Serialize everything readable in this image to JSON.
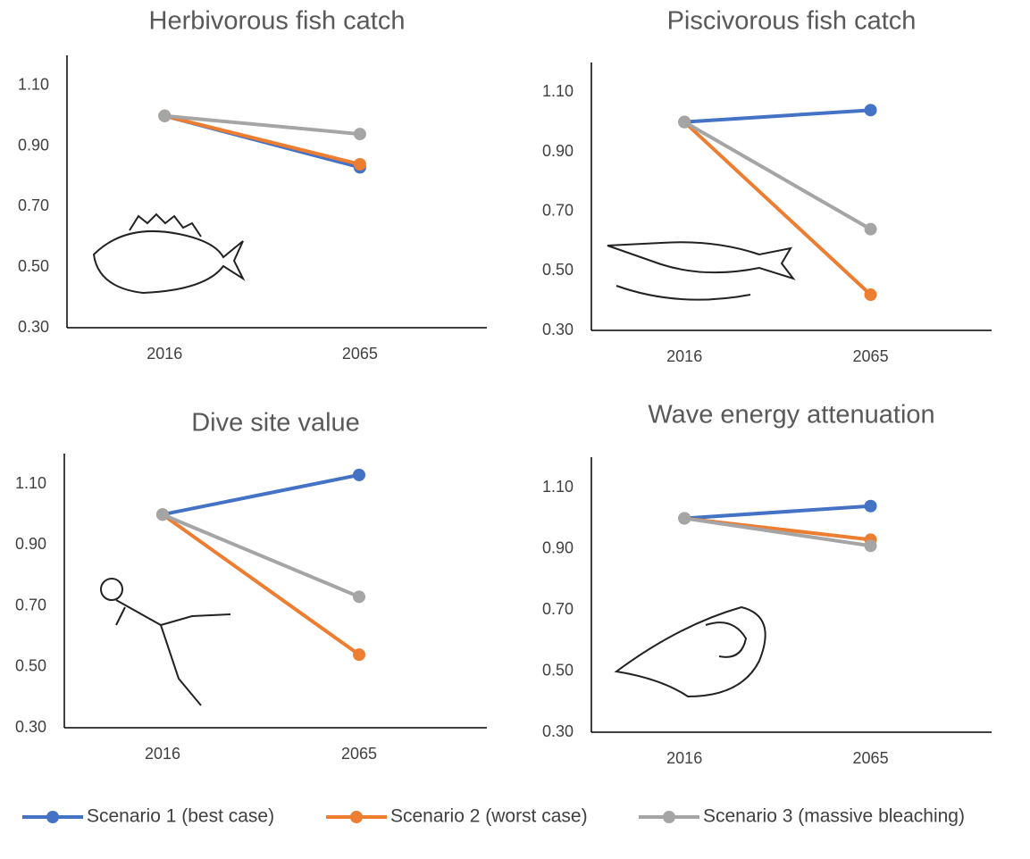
{
  "chart_data": [
    {
      "type": "line",
      "title": "Herbivorous fish catch",
      "categories": [
        "2016",
        "2065"
      ],
      "ylim": [
        0.3,
        1.2
      ],
      "yticks": [
        {
          "value": 0.3,
          "label": "0.30"
        },
        {
          "value": 0.5,
          "label": "0.50"
        },
        {
          "value": 0.7,
          "label": "0.70"
        },
        {
          "value": 0.9,
          "label": "0.90"
        },
        {
          "value": 1.1,
          "label": "1.10"
        }
      ],
      "series": [
        {
          "name": "Scenario 1 (best case)",
          "color": "#4472c4",
          "values": [
            1.0,
            0.83
          ]
        },
        {
          "name": "Scenario 2 (worst case)",
          "color": "#ed7d31",
          "values": [
            1.0,
            0.84
          ]
        },
        {
          "name": "Scenario 3 (massive bleaching)",
          "color": "#a5a5a5",
          "values": [
            1.0,
            0.94
          ]
        }
      ]
    },
    {
      "type": "line",
      "title": "Piscivorous fish catch",
      "categories": [
        "2016",
        "2065"
      ],
      "ylim": [
        0.3,
        1.2
      ],
      "yticks": [
        {
          "value": 0.3,
          "label": "0.30"
        },
        {
          "value": 0.5,
          "label": "0.50"
        },
        {
          "value": 0.7,
          "label": "0.70"
        },
        {
          "value": 0.9,
          "label": "0.90"
        },
        {
          "value": 1.1,
          "label": "1.10"
        }
      ],
      "series": [
        {
          "name": "Scenario 1 (best case)",
          "color": "#4472c4",
          "values": [
            1.0,
            1.04
          ]
        },
        {
          "name": "Scenario 2 (worst case)",
          "color": "#ed7d31",
          "values": [
            1.0,
            0.42
          ]
        },
        {
          "name": "Scenario 3 (massive bleaching)",
          "color": "#a5a5a5",
          "values": [
            1.0,
            0.64
          ]
        }
      ]
    },
    {
      "type": "line",
      "title": "Dive site value",
      "categories": [
        "2016",
        "2065"
      ],
      "ylim": [
        0.3,
        1.2
      ],
      "yticks": [
        {
          "value": 0.3,
          "label": "0.30"
        },
        {
          "value": 0.5,
          "label": "0.50"
        },
        {
          "value": 0.7,
          "label": "0.70"
        },
        {
          "value": 0.9,
          "label": "0.90"
        },
        {
          "value": 1.1,
          "label": "1.10"
        }
      ],
      "series": [
        {
          "name": "Scenario 1 (best case)",
          "color": "#4472c4",
          "values": [
            1.0,
            1.13
          ]
        },
        {
          "name": "Scenario 2 (worst case)",
          "color": "#ed7d31",
          "values": [
            1.0,
            0.54
          ]
        },
        {
          "name": "Scenario 3 (massive bleaching)",
          "color": "#a5a5a5",
          "values": [
            1.0,
            0.73
          ]
        }
      ]
    },
    {
      "type": "line",
      "title": "Wave energy attenuation",
      "categories": [
        "2016",
        "2065"
      ],
      "ylim": [
        0.3,
        1.2
      ],
      "yticks": [
        {
          "value": 0.3,
          "label": "0.30"
        },
        {
          "value": 0.5,
          "label": "0.50"
        },
        {
          "value": 0.7,
          "label": "0.70"
        },
        {
          "value": 0.9,
          "label": "0.90"
        },
        {
          "value": 1.1,
          "label": "1.10"
        }
      ],
      "series": [
        {
          "name": "Scenario 1 (best case)",
          "color": "#4472c4",
          "values": [
            1.0,
            1.04
          ]
        },
        {
          "name": "Scenario 2 (worst case)",
          "color": "#ed7d31",
          "values": [
            1.0,
            0.93
          ]
        },
        {
          "name": "Scenario 3 (massive bleaching)",
          "color": "#a5a5a5",
          "values": [
            1.0,
            0.91
          ]
        }
      ]
    }
  ]
}
